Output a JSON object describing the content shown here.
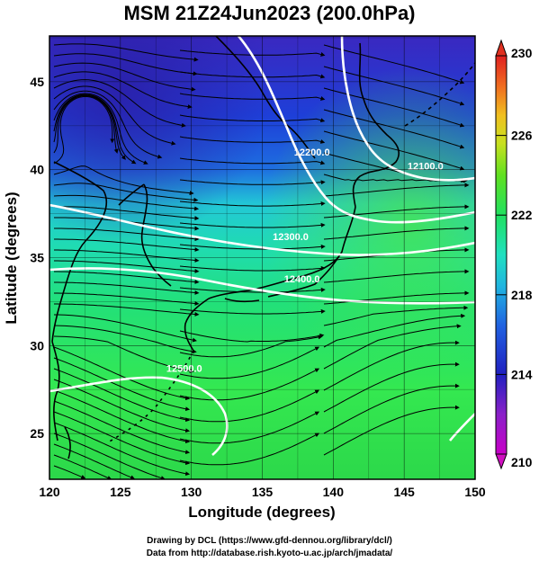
{
  "title": "MSM 21Z24Jun2023 (200.0hPa)",
  "map": {
    "lon_range": [
      120,
      150
    ],
    "lat_range": [
      22.4,
      47.6
    ],
    "xlabel": "Longitude (degrees)",
    "ylabel": "Latitude  (degrees)",
    "x_ticks": [
      "120",
      "125",
      "130",
      "135",
      "140",
      "145",
      "150"
    ],
    "y_ticks": [
      "25",
      "30",
      "35",
      "40",
      "45"
    ],
    "field": "temperature (K) shaded, geopotential height contours, wind streamlines",
    "contours": [
      {
        "label": "12200.0",
        "lon": 138.5,
        "lat": 40.8
      },
      {
        "label": "12100.0",
        "lon": 146.5,
        "lat": 40.0
      },
      {
        "label": "12300.0",
        "lon": 137.0,
        "lat": 36.0
      },
      {
        "label": "12400.0",
        "lon": 137.8,
        "lat": 33.6
      },
      {
        "label": "12500.0",
        "lon": 129.5,
        "lat": 28.5
      }
    ]
  },
  "colorbar": {
    "min": "210",
    "max": "230",
    "ticks": [
      "214",
      "218",
      "222",
      "226"
    ],
    "top_label": "230",
    "bottom_label": "210"
  },
  "footer": {
    "line1": "Drawing by DCL (https://www.gfd-dennou.org/library/dcl/)",
    "line2": "Data from http://database.rish.kyoto-u.ac.jp/arch/jmadata/"
  },
  "colors": {
    "cold": "#2a2fc8",
    "mid": "#20d2c8",
    "warm": "#2ee84a",
    "contour": "#ffffff"
  }
}
